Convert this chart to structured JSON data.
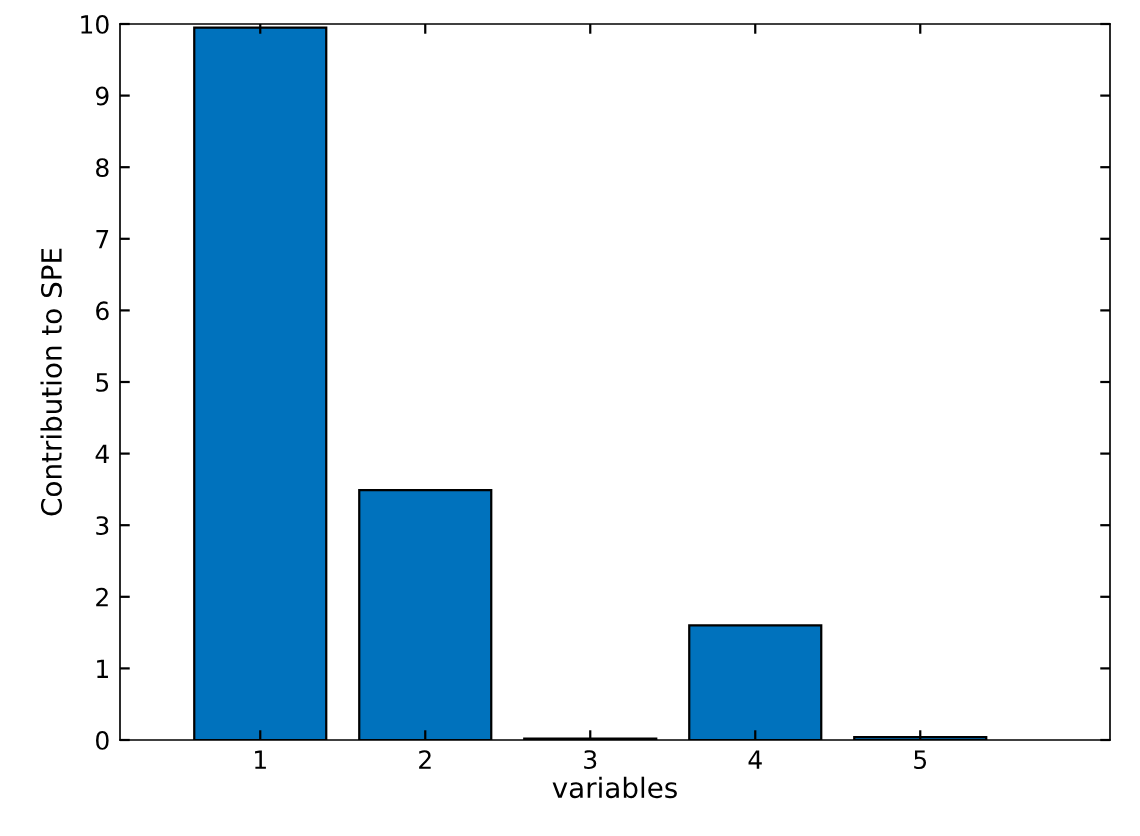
{
  "chart_data": {
    "type": "bar",
    "xlabel": "variables",
    "ylabel": "Contribution to SPE",
    "categories": [
      "1",
      "2",
      "3",
      "4",
      "5"
    ],
    "values": [
      9.95,
      3.49,
      0.02,
      1.6,
      0.04
    ],
    "color": "#0072bd",
    "ylim": [
      0,
      10
    ],
    "yticks": [
      0,
      1,
      2,
      3,
      4,
      5,
      6,
      7,
      8,
      9,
      10
    ],
    "grid": false
  }
}
